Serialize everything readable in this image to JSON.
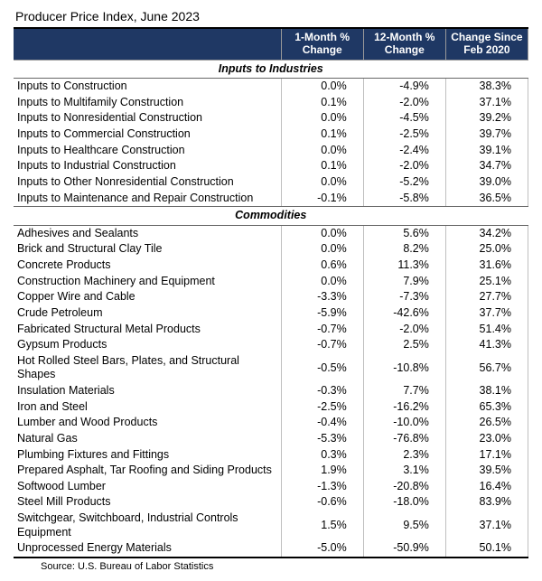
{
  "title": "Producer Price Index, June 2023",
  "source": "Source: U.S. Bureau of Labor Statistics",
  "colors": {
    "header_bg": "#1f3864",
    "header_fg": "#ffffff",
    "border": "#bfbfbf",
    "section_border": "#666666"
  },
  "columns": {
    "c1": "1-Month % Change",
    "c2": "12-Month % Change",
    "c3": "Change Since Feb 2020"
  },
  "sections": [
    {
      "title": "Inputs to Industries",
      "rows": [
        {
          "label": "Inputs to Construction",
          "m1": "0.0%",
          "m12": "-4.9%",
          "feb": "38.3%"
        },
        {
          "label": "Inputs to Multifamily Construction",
          "m1": "0.1%",
          "m12": "-2.0%",
          "feb": "37.1%"
        },
        {
          "label": "Inputs to Nonresidential Construction",
          "m1": "0.0%",
          "m12": "-4.5%",
          "feb": "39.2%"
        },
        {
          "label": "Inputs to Commercial Construction",
          "m1": "0.1%",
          "m12": "-2.5%",
          "feb": "39.7%"
        },
        {
          "label": "Inputs to Healthcare Construction",
          "m1": "0.0%",
          "m12": "-2.4%",
          "feb": "39.1%"
        },
        {
          "label": "Inputs to Industrial Construction",
          "m1": "0.1%",
          "m12": "-2.0%",
          "feb": "34.7%"
        },
        {
          "label": "Inputs to Other Nonresidential Construction",
          "m1": "0.0%",
          "m12": "-5.2%",
          "feb": "39.0%"
        },
        {
          "label": "Inputs to Maintenance and Repair Construction",
          "m1": "-0.1%",
          "m12": "-5.8%",
          "feb": "36.5%"
        }
      ]
    },
    {
      "title": "Commodities",
      "rows": [
        {
          "label": "Adhesives and Sealants",
          "m1": "0.0%",
          "m12": "5.6%",
          "feb": "34.2%"
        },
        {
          "label": "Brick and Structural Clay Tile",
          "m1": "0.0%",
          "m12": "8.2%",
          "feb": "25.0%"
        },
        {
          "label": "Concrete Products",
          "m1": "0.6%",
          "m12": "11.3%",
          "feb": "31.6%"
        },
        {
          "label": "Construction Machinery and Equipment",
          "m1": "0.0%",
          "m12": "7.9%",
          "feb": "25.1%"
        },
        {
          "label": "Copper Wire and Cable",
          "m1": "-3.3%",
          "m12": "-7.3%",
          "feb": "27.7%"
        },
        {
          "label": "Crude Petroleum",
          "m1": "-5.9%",
          "m12": "-42.6%",
          "feb": "37.7%"
        },
        {
          "label": "Fabricated Structural Metal Products",
          "m1": "-0.7%",
          "m12": "-2.0%",
          "feb": "51.4%"
        },
        {
          "label": "Gypsum Products",
          "m1": "-0.7%",
          "m12": "2.5%",
          "feb": "41.3%"
        },
        {
          "label": "Hot Rolled Steel Bars, Plates, and Structural Shapes",
          "m1": "-0.5%",
          "m12": "-10.8%",
          "feb": "56.7%"
        },
        {
          "label": "Insulation Materials",
          "m1": "-0.3%",
          "m12": "7.7%",
          "feb": "38.1%"
        },
        {
          "label": "Iron and Steel",
          "m1": "-2.5%",
          "m12": "-16.2%",
          "feb": "65.3%"
        },
        {
          "label": "Lumber and Wood Products",
          "m1": "-0.4%",
          "m12": "-10.0%",
          "feb": "26.5%"
        },
        {
          "label": "Natural Gas",
          "m1": "-5.3%",
          "m12": "-76.8%",
          "feb": "23.0%"
        },
        {
          "label": "Plumbing Fixtures and Fittings",
          "m1": "0.3%",
          "m12": "2.3%",
          "feb": "17.1%"
        },
        {
          "label": "Prepared Asphalt, Tar Roofing and Siding Products",
          "m1": "1.9%",
          "m12": "3.1%",
          "feb": "39.5%"
        },
        {
          "label": "Softwood Lumber",
          "m1": "-1.3%",
          "m12": "-20.8%",
          "feb": "16.4%"
        },
        {
          "label": "Steel Mill Products",
          "m1": "-0.6%",
          "m12": "-18.0%",
          "feb": "83.9%"
        },
        {
          "label": "Switchgear, Switchboard, Industrial Controls Equipment",
          "m1": "1.5%",
          "m12": "9.5%",
          "feb": "37.1%"
        },
        {
          "label": "Unprocessed Energy Materials",
          "m1": "-5.0%",
          "m12": "-50.9%",
          "feb": "50.1%"
        }
      ]
    }
  ]
}
